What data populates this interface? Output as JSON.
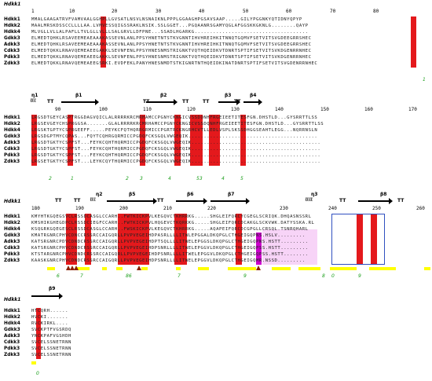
{
  "title_label": "Hdkk1",
  "sequence_names": [
    "Hdkk1",
    "Hdkk2",
    "Hdkk4",
    "Gdkk3",
    "Adkk3",
    "Cdkk3",
    "Pdkk3",
    "Zdkk3"
  ],
  "block1": {
    "ruler": [
      "1",
      "10",
      "20",
      "30",
      "40",
      "50",
      "60",
      "70",
      "80"
    ],
    "rows": [
      "MMALGAAGATRVFVAMVAALGGHPLLGVSATLNSVLNSNAIKNLPPPLGGAAGHPGSAVSAAP.....GILYPGGNKYQTIDNYQPYP",
      "MAALMRSKDSSCCLLLLAA.LVMVESSQIGSSRAKLNSIK.SSLGGET...PGQAANRSGAMYQGLAFGGSKKGKNLG........QAYP",
      "MLVGLLVLLALPAFLLTVLGLLVLLLSALGRVLLDFPNE...SSADLHGARKG.....................................",
      "ELMEDTQHKLRSAVEEMEAEAAAKASSEVNLANLPPSYHNETNTSTKVGNNTIHVHREIHKITNNQTGQMVFSETVITSVGDEEGRRSHEC",
      "ELMEDTQHKLRSAVEEMEAEAAAKASSEVNLANLPPSYHNETNTSTKVGNNTIHVHREIHKITNNQTGQMVFSETVITSVGDEEGRRSHEC",
      "ELMEDTQKKLRNAVQEMEAEEGAKKLSEVNFENLPPSYHNESNMSTRIGNKTVQTHQEIDKVTDNRTSPTIFSETVITSVKDGENRRNHEC",
      "ELMEDTQKKLRNAVQEMEAEEGAKKLSEVNFENLPPSYHNESNMSTRIGNKTVQTHQEIDKVTDNRTSPTIFSETVITSVKDGENRRNHEC",
      "ELMEDTQKKLRNAVQEMEAEEGSRKI.EVDFEKLPANYHNESNMDTSTKIGNRTNTHQEIDKINATDNRTSPTIFSETVITSVGDENRRNHEC"
    ],
    "green_numbers": [
      "1"
    ]
  },
  "block2": {
    "ss_labels": [
      "η1",
      "β1",
      "β2",
      "β3",
      "β4",
      "TT",
      "TT",
      "TT",
      "TT",
      "TT"
    ],
    "ruler": [
      "90",
      "100",
      "110",
      "120",
      "130",
      "140",
      "150",
      "160",
      "170"
    ],
    "rows": [
      "LRGSDTGEYCASPTRGGDAGVQICLALRRRRKRCMRHAMCCPGNYCKNGICVSSDQNHFRGEIEETITESFGN.DHSTLD...GYSRRTTLSS",
      "LRGSEVGEYCHSPRGGSA.......GLALRRRRKRCMRHAMCCPGNYCKNGICVSSDQNHFRGEIEETITESFGN.DHSTLD...GYSRRTTLSS",
      "LRGSKTGPTYCSPRGEEFF.....PEYKCFQTHQRRGRMICCPGRTRCKNGRHCVTLLEDLVSPLSKSSDHGGSEAHTLEGG...NQRRNSLN",
      "LRGSDGPTMYCQPAS...FQYTCQHRGQRMICCPGDQFCKSGQLVWGEQIK..........................................",
      "LRGSDTGKTYCSPFST...FEYKCQHTHQRMICCPGDQFCKSGQLVWGEQIK..........................................",
      "LRGSDTGKTYCSPFST...FEYKCQHTHQRMICCPGDQFCKSGQLVWGEQIK..........................................",
      "LRGSDTGKTYCSPFST...FEYKCQHTHQRMICCPGDQFCKSGQLVWGEQIK..........................................",
      "LRGSETGKTYCSPFST...LEYKCQYTHQRMICCPGDQFCKSGQLVWGEQIK.........................................."
    ],
    "green_numbers": [
      "2",
      "1",
      "2",
      "3",
      "4",
      "53",
      "4",
      "5"
    ]
  },
  "block3": {
    "ss_labels": [
      "η2",
      "β5",
      "β6",
      "β7",
      "η3",
      "β8",
      "TT",
      "TT",
      "TT",
      "TT",
      "TT"
    ],
    "ruler": [
      "180",
      "190",
      "200",
      "210",
      "220",
      "230",
      "240",
      "250",
      "260"
    ],
    "rows": [
      "KMYHTKGQEGSVCLRSSDCASGLCCARH..FWTKICKPVLKEGQVCTKHRRKG.....SHGLEIFQRCYCGEGLSCRIQK.DHQASNSSRL",
      "KMSHIKGHEGDPCLRSSDCIEGFCCARH..FWTKICKPVLHQGEVCTKQRKKG.....SHGLEIFQRCDCAKGLSCKVWK.DATYSSKA.RL",
      "KSQGRKGQEGESCLRSSDCASGLCCARH..FWSKICKPVLKEGQVCTKHRRKG.....AQAPEIFQRCDCGPGLLCRSQL.TSNRQHARL",
      "KMATRGNRCPHVCDNCCRSSRCCAIGQRLLPVPVEGEIHDPASRLLLLITWLEPGGALDKQPGLCTHGEIGQPNS.HSLV.........",
      "KATSRGNRCPDVCDNDCRSSRCCAIGQRLLPVPVEGEIHDPTSQLLLLITWELEPGGSLDKQPGLCTHGEIGQPNS.HSTT.........",
      "KATSRGNRCPHVCDNDCRSSRCCAIGQRLLPVPVEGEIHDPSNRLLLLITWELEPGGVLDKQPGLCTHGEIGQPSS.HSTT.........",
      "KTSTARGNRCPHVCDNDCRSSRCCAIGQRLLPVPVEGEIHDPSNRLLLLITWELEPGGVLDKQPGLCTHGEIGQPSS.HSTT........",
      "KAASKGNRCPHVCDNDCRSSRCCAIGQRLLPVPVEGEIHDPSNRLLLLITWELEPGGVLDKQPGLCTHGEIGQMR.NSSD........."
    ],
    "green_numbers": [
      "6",
      "7",
      "86",
      "7",
      "9",
      "8",
      "0",
      "9"
    ]
  },
  "block4": {
    "ss_labels": [
      "β9"
    ],
    "rows": [
      "HTCQRH......",
      "HVCKI.......",
      "RVCKIRKL....",
      "SVCKPTFVGSRDQ",
      "YNCKPAFVGSHDH",
      "SVCELSSNETRNN",
      "SVCELSSNETRNN",
      "SVCELSSNETRNN"
    ],
    "green_numbers": [
      "0"
    ]
  },
  "colors": {
    "identity_red": "#e4191c",
    "helix_magenta": "#cc00cc",
    "surface_yellow": "#ffff00",
    "green_label": "#1a9e1a",
    "triangle_brown": "#8b2000"
  }
}
